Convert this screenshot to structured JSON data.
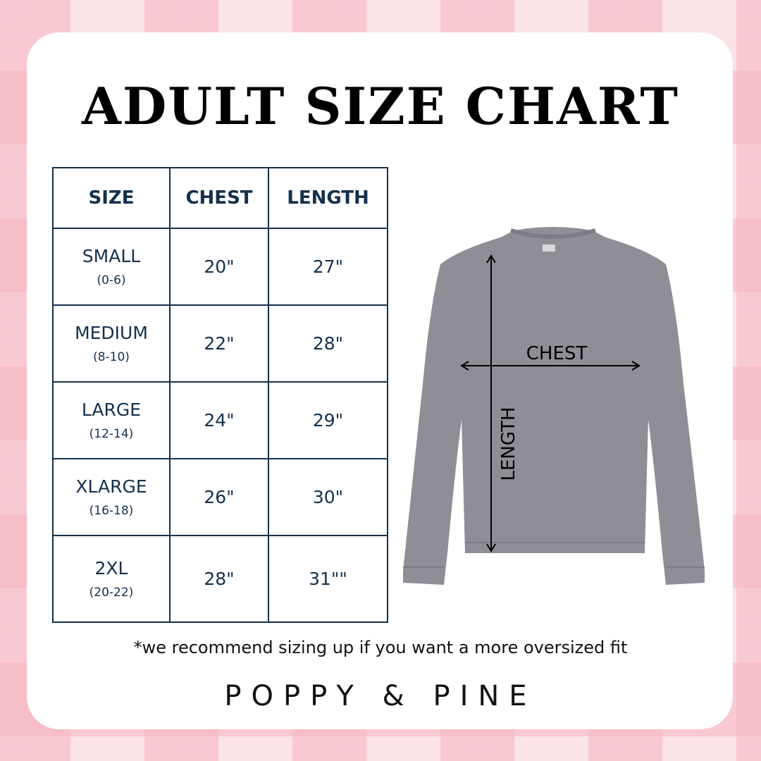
{
  "title": "ADULT SIZE CHART",
  "table": {
    "headers": [
      "SIZE",
      "CHEST",
      "LENGTH"
    ],
    "rows": [
      {
        "size": "SMALL",
        "range": "(0-6)",
        "chest": "20\"",
        "length": "27\""
      },
      {
        "size": "MEDIUM",
        "range": "(8-10)",
        "chest": "22\"",
        "length": "28\""
      },
      {
        "size": "LARGE",
        "range": "(12-14)",
        "chest": "24\"",
        "length": "29\""
      },
      {
        "size": "XLARGE",
        "range": "(16-18)",
        "chest": "26\"",
        "length": "30\""
      },
      {
        "size": "2XL",
        "range": "(20-22)",
        "chest": "28\"",
        "length": "31\"\""
      }
    ]
  },
  "diagram": {
    "chest_label": "CHEST",
    "length_label": "LENGTH",
    "garment_color": "#8f8e96"
  },
  "note": "*we recommend sizing up if you want a more oversized fit",
  "brand": "POPPY & PINE"
}
